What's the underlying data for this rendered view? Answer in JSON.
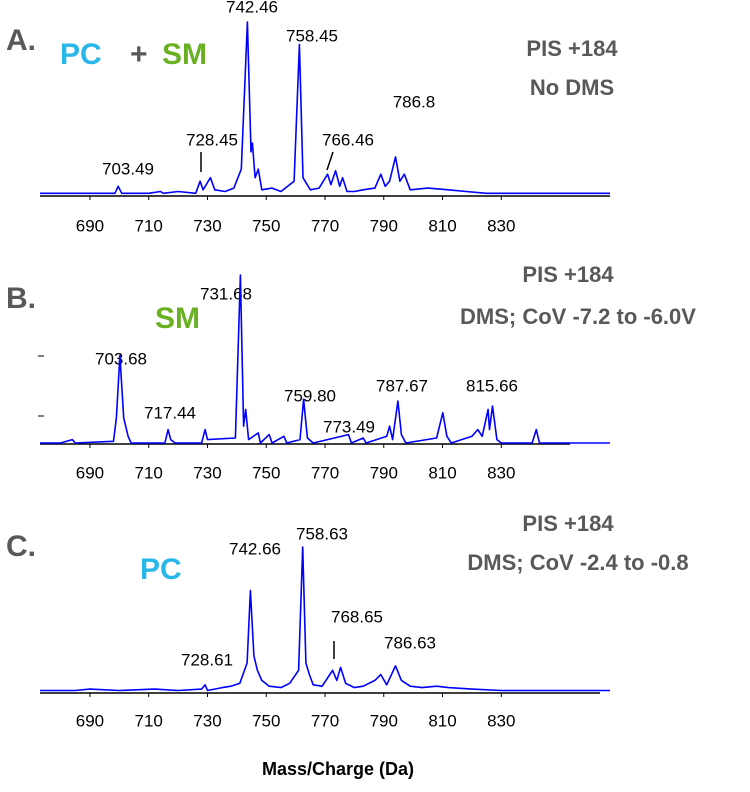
{
  "chart_data": [
    {
      "type": "line",
      "panel_label": "A.",
      "title_parts": [
        {
          "text": "PC",
          "color": "#29b6e8"
        },
        {
          "text": "+",
          "color": "#595959"
        },
        {
          "text": "SM",
          "color": "#6ab023"
        }
      ],
      "notes": [
        "PIS  +184",
        "No DMS"
      ],
      "annotations": [
        "703.49",
        "728.45",
        "742.46",
        "758.45",
        "766.46",
        "786.8"
      ],
      "color": "#0000ff",
      "xlim": [
        673,
        867
      ],
      "xticks": [
        690,
        710,
        730,
        750,
        770,
        790,
        810,
        830
      ],
      "ylim": [
        0,
        100
      ],
      "x": [
        673,
        690,
        698.5,
        699.6,
        700.8,
        710,
        714,
        715,
        720,
        726,
        727.5,
        728.5,
        731,
        732.5,
        736,
        739,
        741.5,
        743.6,
        744.8,
        745.3,
        746.2,
        747.3,
        748.5,
        752,
        755,
        759.5,
        761.3,
        762.5,
        765,
        768,
        770.9,
        772,
        773.6,
        775,
        776,
        777.5,
        780,
        783,
        787,
        789,
        790.5,
        792,
        794,
        795.5,
        797,
        799,
        805,
        812,
        818,
        825,
        836,
        850,
        867
      ],
      "values": [
        1,
        1,
        1,
        5,
        1,
        1,
        2,
        1,
        2,
        1,
        8,
        3,
        10,
        3,
        2,
        4,
        15,
        100,
        25,
        30,
        10,
        15,
        3,
        4,
        2,
        8,
        87,
        10,
        3,
        4,
        12,
        6,
        14,
        5,
        10,
        2,
        2,
        3,
        4,
        12,
        5,
        8,
        22,
        8,
        12,
        3,
        4,
        3,
        2,
        1,
        1,
        1,
        1
      ]
    },
    {
      "type": "line",
      "panel_label": "B.",
      "title_parts": [
        {
          "text": "SM",
          "color": "#6ab023"
        }
      ],
      "notes": [
        "PIS  +184",
        "DMS; CoV -7.2 to -6.0V"
      ],
      "annotations": [
        "703.68",
        "717.44",
        "731.68",
        "759.80",
        "773.49",
        "787.67",
        "815.66"
      ],
      "color": "#0000ff",
      "xlim": [
        673,
        867
      ],
      "xticks": [
        690,
        710,
        730,
        750,
        770,
        790,
        810,
        830
      ],
      "ylim": [
        0,
        100
      ],
      "x": [
        673,
        680,
        684,
        685,
        698,
        699,
        700.2,
        701.5,
        703,
        704,
        715.5,
        716.6,
        717.5,
        719,
        728,
        729.2,
        730,
        739.5,
        741.2,
        742.3,
        743,
        744,
        747.3,
        748,
        751,
        752,
        756,
        757,
        761.5,
        762.7,
        764,
        766,
        778,
        779,
        783,
        784,
        791,
        792,
        793,
        794.8,
        796,
        797.5,
        808,
        810.1,
        811.5,
        813,
        820,
        822,
        823.5,
        825.5,
        826,
        827,
        828.5,
        830,
        840.5,
        841.9,
        843,
        850,
        867
      ],
      "values": [
        0,
        0,
        2,
        0,
        1,
        15,
        52,
        15,
        4,
        0,
        0,
        8,
        2,
        0,
        0,
        8,
        2,
        3,
        100,
        10,
        20,
        2,
        6,
        0,
        5,
        0,
        4,
        0,
        2,
        26,
        3,
        0,
        5,
        0,
        3,
        0,
        4,
        10,
        2,
        25,
        5,
        0,
        3,
        18,
        4,
        0,
        4,
        8,
        4,
        20,
        8,
        22,
        2,
        0,
        0,
        8,
        0,
        0,
        0
      ]
    },
    {
      "type": "line",
      "panel_label": "C.",
      "title_parts": [
        {
          "text": "PC",
          "color": "#29b6e8"
        }
      ],
      "notes": [
        "PIS  +184",
        "DMS; CoV -2.4 to -0.8"
      ],
      "annotations": [
        "728.61",
        "742.66",
        "758.63",
        "768.65",
        "786.63"
      ],
      "color": "#0000ff",
      "xlabel": "Mass/Charge (Da)",
      "xlim": [
        673,
        867
      ],
      "xticks": [
        690,
        710,
        730,
        750,
        770,
        790,
        810,
        830
      ],
      "ylim": [
        0,
        100
      ],
      "x": [
        673,
        685,
        690,
        700,
        712,
        720,
        728,
        729.2,
        730,
        735,
        738,
        741,
        743.5,
        744.6,
        745.8,
        747,
        748.5,
        751,
        755,
        758,
        761,
        762.4,
        763.5,
        764.7,
        766,
        769,
        771,
        772.6,
        774,
        775.3,
        777,
        780,
        783,
        787,
        789,
        791,
        794,
        796,
        799,
        803,
        808,
        812,
        820,
        830,
        840,
        850,
        867
      ],
      "values": [
        1,
        1,
        2,
        1,
        2,
        1,
        2,
        5,
        1,
        3,
        4,
        6,
        20,
        70,
        25,
        15,
        8,
        4,
        3,
        6,
        15,
        100,
        20,
        12,
        5,
        4,
        10,
        15,
        8,
        17,
        6,
        3,
        4,
        8,
        12,
        5,
        18,
        8,
        4,
        3,
        4,
        3,
        2,
        1,
        1,
        1,
        1
      ]
    }
  ]
}
